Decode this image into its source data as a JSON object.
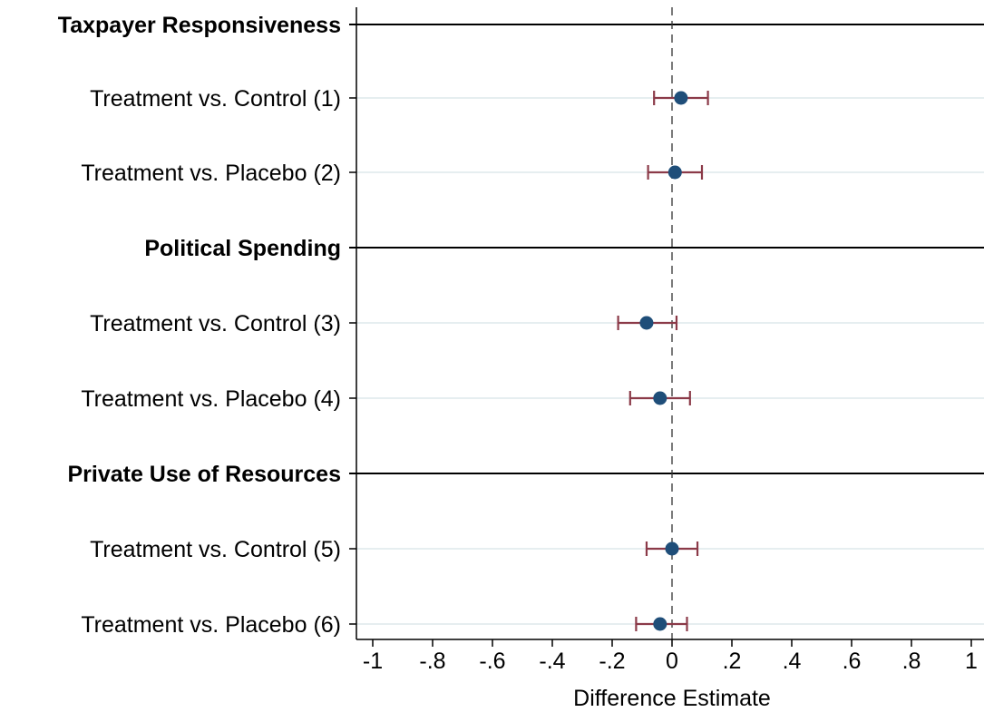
{
  "chart_data": {
    "type": "coefficient-plot",
    "xlabel": "Difference Estimate",
    "xlim": [
      -1.05,
      1.05
    ],
    "x_ticks": [
      -1,
      -0.8,
      -0.6,
      -0.4,
      -0.2,
      0,
      0.2,
      0.4,
      0.6,
      0.8,
      1
    ],
    "x_tick_labels": [
      "-1",
      "-.8",
      "-.6",
      "-.4",
      "-.2",
      "0",
      ".2",
      ".4",
      ".6",
      ".8",
      "1"
    ],
    "reference_line": 0,
    "groups": [
      {
        "name": "Taxpayer Responsiveness",
        "rows": [
          {
            "label": "Treatment vs. Control (1)",
            "estimate": 0.03,
            "ci": [
              -0.06,
              0.12
            ]
          },
          {
            "label": "Treatment vs. Placebo (2)",
            "estimate": 0.01,
            "ci": [
              -0.08,
              0.1
            ]
          }
        ]
      },
      {
        "name": "Political Spending",
        "rows": [
          {
            "label": "Treatment vs. Control (3)",
            "estimate": -0.085,
            "ci": [
              -0.18,
              0.015
            ]
          },
          {
            "label": "Treatment vs. Placebo (4)",
            "estimate": -0.04,
            "ci": [
              -0.14,
              0.06
            ]
          }
        ]
      },
      {
        "name": "Private Use of Resources",
        "rows": [
          {
            "label": "Treatment vs. Control (5)",
            "estimate": 0.0,
            "ci": [
              -0.085,
              0.085
            ]
          },
          {
            "label": "Treatment vs. Placebo (6)",
            "estimate": -0.04,
            "ci": [
              -0.12,
              0.05
            ]
          }
        ]
      }
    ],
    "colors": {
      "point": "#1f4e79",
      "ci": "#8b3a48",
      "row_guide": "#e6eef0",
      "group_line": "#000000",
      "reference": "#333333"
    }
  }
}
